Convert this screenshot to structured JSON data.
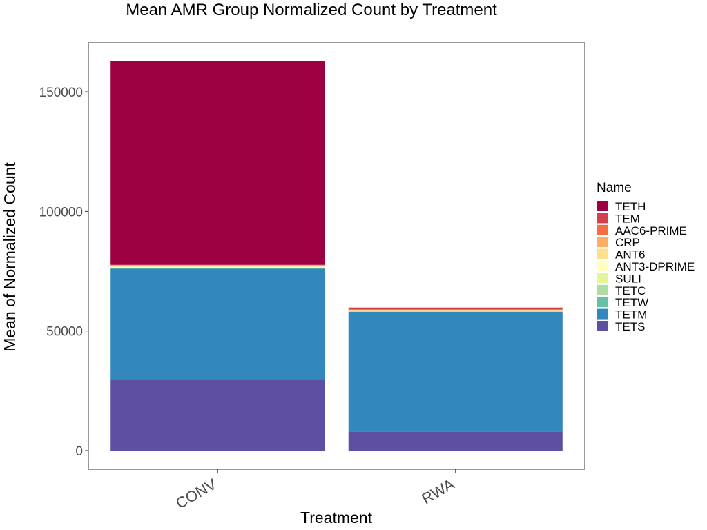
{
  "chart_data": {
    "type": "bar",
    "stacked": true,
    "title": "Mean AMR Group Normalized Count by Treatment",
    "xlabel": "Treatment",
    "ylabel": "Mean of Normalized Count",
    "ylim": [
      -8000,
      170000
    ],
    "yticks": [
      0,
      50000,
      100000,
      150000
    ],
    "ytick_labels": [
      "0",
      "50000",
      "100000",
      "150000"
    ],
    "categories": [
      "CONV",
      "RWA"
    ],
    "legend": {
      "title": "Name",
      "position": "right"
    },
    "series": [
      {
        "name": "TETS",
        "color": "#5E4FA2",
        "values": [
          29500,
          7800
        ]
      },
      {
        "name": "TETM",
        "color": "#3288BD",
        "values": [
          46500,
          50200
        ]
      },
      {
        "name": "TETW",
        "color": "#66C2A5",
        "values": [
          200,
          100
        ]
      },
      {
        "name": "TETC",
        "color": "#ABDDA4",
        "values": [
          200,
          100
        ]
      },
      {
        "name": "SULI",
        "color": "#E6F598",
        "values": [
          200,
          100
        ]
      },
      {
        "name": "ANT3-DPRIME",
        "color": "#FFFFBF",
        "values": [
          300,
          200
        ]
      },
      {
        "name": "ANT6",
        "color": "#FEE08B",
        "values": [
          400,
          300
        ]
      },
      {
        "name": "CRP",
        "color": "#FDAE61",
        "values": [
          200,
          100
        ]
      },
      {
        "name": "AAC6-PRIME",
        "color": "#F46D43",
        "values": [
          100,
          100
        ]
      },
      {
        "name": "TEM",
        "color": "#D53E4F",
        "values": [
          100,
          800
        ]
      },
      {
        "name": "TETH",
        "color": "#9E0142",
        "values": [
          85000,
          0
        ]
      }
    ],
    "legend_order": [
      "TETH",
      "TEM",
      "AAC6-PRIME",
      "CRP",
      "ANT6",
      "ANT3-DPRIME",
      "SULI",
      "TETC",
      "TETW",
      "TETM",
      "TETS"
    ]
  }
}
